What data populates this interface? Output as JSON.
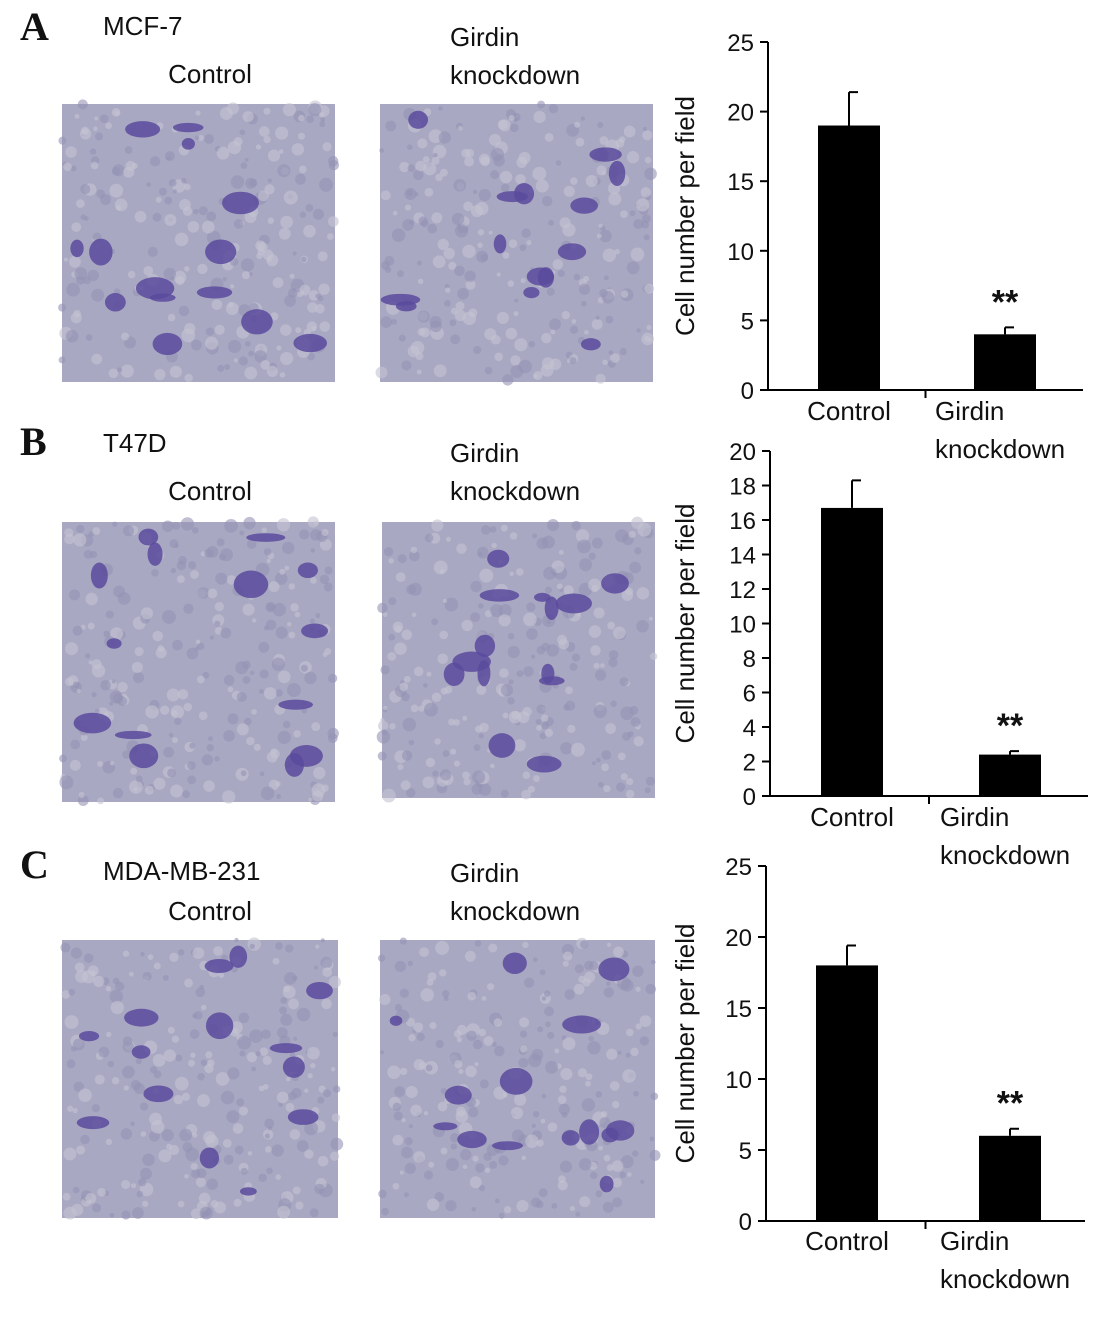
{
  "panels": [
    {
      "label": "A",
      "cell_line": "MCF-7",
      "image_titles": [
        "Control",
        "Girdin knockdown"
      ]
    },
    {
      "label": "B",
      "cell_line": "T47D",
      "image_titles": [
        "Control",
        "Girdin knockdown"
      ]
    },
    {
      "label": "C",
      "cell_line": "MDA-MB-231",
      "image_titles": [
        "Control",
        "Girdin knockdown"
      ]
    }
  ],
  "chart_data": [
    {
      "type": "bar",
      "y_label": "Cell number per field",
      "categories": [
        "Control",
        "Girdin knockdown"
      ],
      "values": [
        19,
        4
      ],
      "errors": [
        2.4,
        0.5
      ],
      "color": "#000000",
      "annotations": [
        null,
        "**"
      ],
      "ylim": [
        0,
        25
      ],
      "yticks": [
        0,
        5,
        10,
        15,
        20,
        25
      ]
    },
    {
      "type": "bar",
      "y_label": "Cell number per field",
      "categories": [
        "Control",
        "Girdin knockdown"
      ],
      "values": [
        16.7,
        2.4
      ],
      "errors": [
        1.6,
        0.2
      ],
      "color": "#000000",
      "annotations": [
        null,
        "**"
      ],
      "ylim": [
        0,
        20
      ],
      "yticks": [
        0,
        2,
        4,
        6,
        8,
        10,
        12,
        14,
        16,
        18,
        20
      ]
    },
    {
      "type": "bar",
      "y_label": "Cell number per field",
      "categories": [
        "Control",
        "Girdin knockdown"
      ],
      "values": [
        18,
        6
      ],
      "errors": [
        1.4,
        0.5
      ],
      "color": "#000000",
      "annotations": [
        null,
        "**"
      ],
      "ylim": [
        0,
        25
      ],
      "yticks": [
        0,
        5,
        10,
        15,
        20,
        25
      ]
    }
  ]
}
